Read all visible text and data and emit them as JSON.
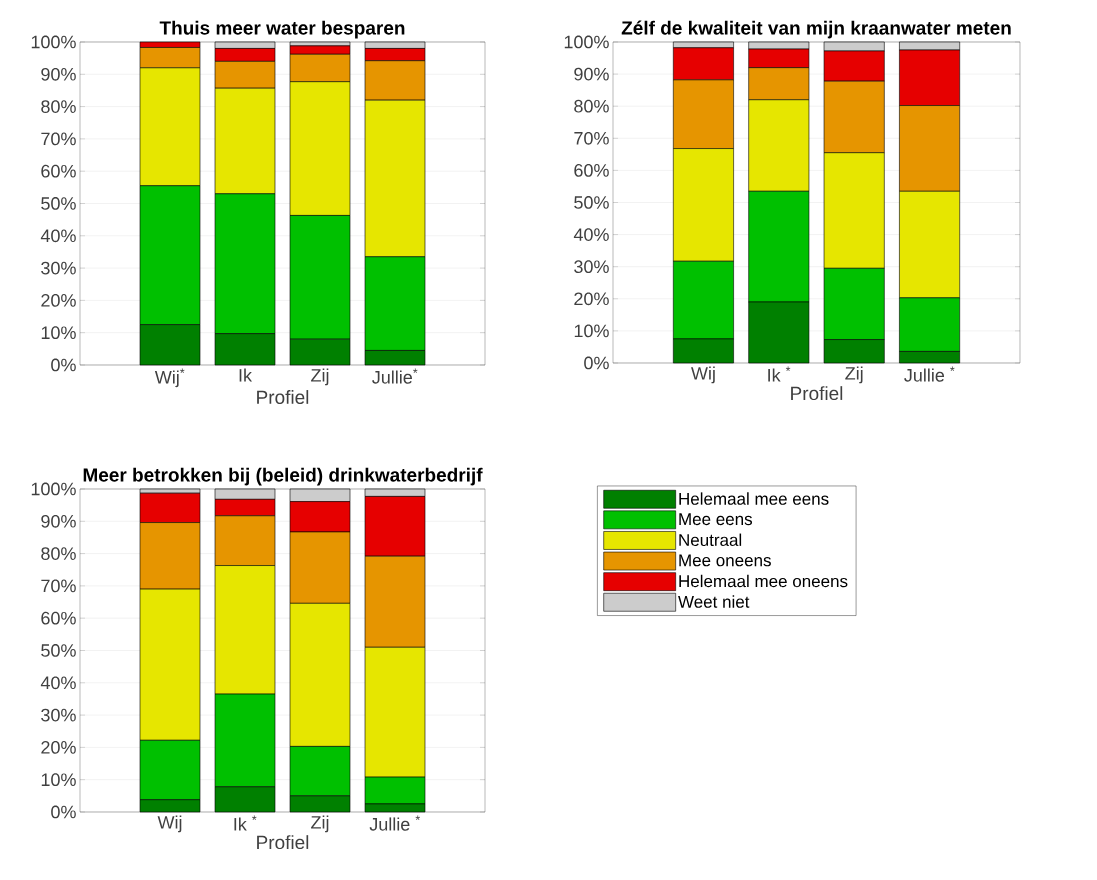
{
  "chart_data": [
    {
      "type": "bar",
      "stacked": true,
      "title": "Thuis meer water besparen",
      "xlabel": "Profiel",
      "categories": [
        "Wij$^{*}$",
        "Ik",
        "Zij",
        "Jullie$^{*}$"
      ],
      "ylim": [
        0,
        100
      ],
      "yticks": [
        {
          "value": 0,
          "label": "0%"
        },
        {
          "value": 10,
          "label": "10%"
        },
        {
          "value": 20,
          "label": "20%"
        },
        {
          "value": 30,
          "label": "30%"
        },
        {
          "value": 40,
          "label": "40%"
        },
        {
          "value": 50,
          "label": "50%"
        },
        {
          "value": 60,
          "label": "60%"
        },
        {
          "value": 70,
          "label": "70%"
        },
        {
          "value": 80,
          "label": "80%"
        },
        {
          "value": 90,
          "label": "90%"
        },
        {
          "value": 100,
          "label": "100%"
        }
      ],
      "grid": "y",
      "series": [
        {
          "color": "#008000",
          "values": [
            12.5,
            9.7,
            8,
            4.5
          ]
        },
        {
          "color": "#00c000",
          "values": [
            43,
            43.3,
            38.3,
            29
          ]
        },
        {
          "color": "#e6e600",
          "values": [
            36.5,
            32.7,
            41.4,
            48.5
          ]
        },
        {
          "color": "#e69500",
          "values": [
            6.3,
            8.3,
            8.5,
            12.2
          ]
        },
        {
          "color": "#e60000",
          "values": [
            1.7,
            4,
            2.6,
            3.8
          ]
        },
        {
          "color": "#cccccc",
          "values": [
            0,
            2,
            1.2,
            2
          ]
        }
      ]
    },
    {
      "type": "bar",
      "stacked": true,
      "title": "Zélf de kwaliteit van mijn kraanwater meten",
      "xlabel": "Profiel",
      "categories": [
        "Wij",
        "Ik $^{*}$",
        "Zij",
        "Jullie $^{*}$"
      ],
      "ylim": [
        0,
        100
      ],
      "yticks": [
        {
          "value": 0,
          "label": "0%"
        },
        {
          "value": 10,
          "label": "10%"
        },
        {
          "value": 20,
          "label": "20%"
        },
        {
          "value": 30,
          "label": "30%"
        },
        {
          "value": 40,
          "label": "40%"
        },
        {
          "value": 50,
          "label": "50%"
        },
        {
          "value": 60,
          "label": "60%"
        },
        {
          "value": 70,
          "label": "70%"
        },
        {
          "value": 80,
          "label": "80%"
        },
        {
          "value": 90,
          "label": "90%"
        },
        {
          "value": 100,
          "label": "100%"
        }
      ],
      "grid": "y",
      "series": [
        {
          "color": "#008000",
          "values": [
            7.5,
            19,
            7.3,
            3.6
          ]
        },
        {
          "color": "#00c000",
          "values": [
            24.2,
            34.5,
            22.2,
            16.7
          ]
        },
        {
          "color": "#e6e600",
          "values": [
            35.1,
            28.5,
            36,
            33.2
          ]
        },
        {
          "color": "#e69500",
          "values": [
            21.4,
            10,
            22.3,
            26.7
          ]
        },
        {
          "color": "#e60000",
          "values": [
            10,
            5.8,
            9.4,
            17.3
          ]
        },
        {
          "color": "#cccccc",
          "values": [
            1.8,
            2.2,
            2.8,
            2.5
          ]
        }
      ]
    },
    {
      "type": "bar",
      "stacked": true,
      "title": "Meer betrokken bij (beleid) drinkwaterbedrijf",
      "xlabel": "Profiel",
      "categories": [
        "Wij",
        "Ik  $^{*}$",
        "Zij",
        "Jullie  $^{*}$"
      ],
      "ylim": [
        0,
        100
      ],
      "yticks": [
        {
          "value": 0,
          "label": "0%"
        },
        {
          "value": 10,
          "label": "10%"
        },
        {
          "value": 20,
          "label": "20%"
        },
        {
          "value": 30,
          "label": "30%"
        },
        {
          "value": 40,
          "label": "40%"
        },
        {
          "value": 50,
          "label": "50%"
        },
        {
          "value": 60,
          "label": "60%"
        },
        {
          "value": 70,
          "label": "70%"
        },
        {
          "value": 80,
          "label": "80%"
        },
        {
          "value": 90,
          "label": "90%"
        },
        {
          "value": 100,
          "label": "100%"
        }
      ],
      "grid": "y",
      "legend": "right",
      "series": [
        {
          "name": "Helemaal mee eens",
          "color": "#008000",
          "values": [
            3.8,
            7.8,
            5,
            2.5
          ]
        },
        {
          "name": "Mee eens",
          "color": "#00c000",
          "values": [
            18.4,
            28.7,
            15.3,
            8.3
          ]
        },
        {
          "name": "Neutraal",
          "color": "#e6e600",
          "values": [
            46.8,
            39.8,
            44.3,
            40.2
          ]
        },
        {
          "name": "Mee oneens",
          "color": "#e69500",
          "values": [
            20.6,
            15.4,
            22.1,
            28.2
          ]
        },
        {
          "name": "Helemaal mee oneens",
          "color": "#e60000",
          "values": [
            9.1,
            5.1,
            9.4,
            18.5
          ]
        },
        {
          "name": "Weet niet",
          "color": "#cccccc",
          "values": [
            1.3,
            3.2,
            3.9,
            2.3
          ]
        }
      ]
    }
  ]
}
